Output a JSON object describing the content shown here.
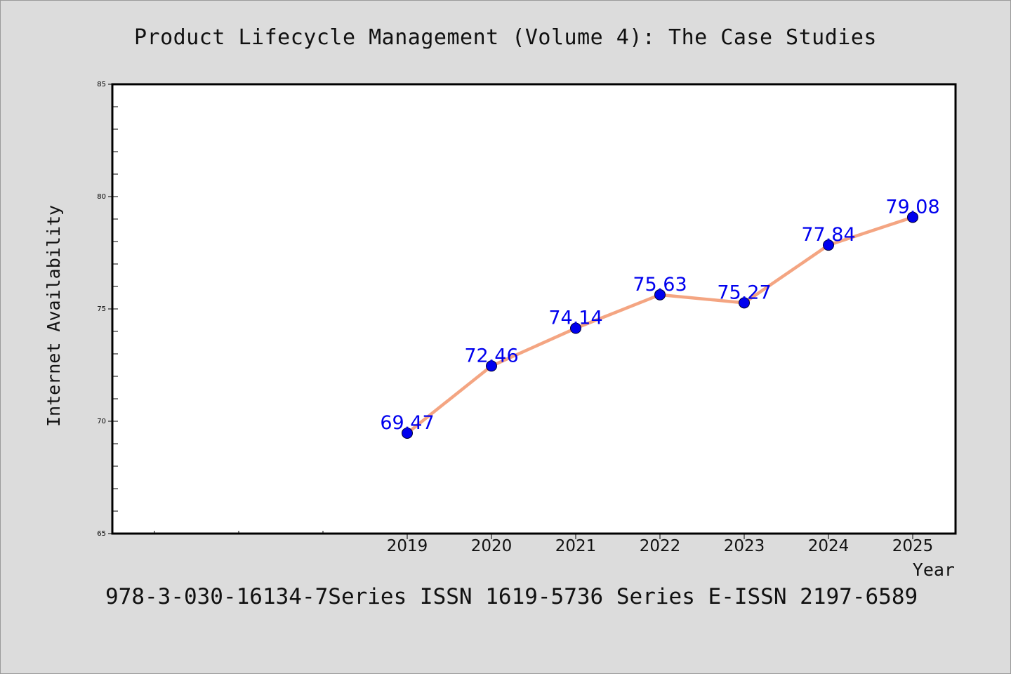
{
  "chart_data": {
    "type": "line",
    "title": "Product Lifecycle Management (Volume 4): The Case Studies",
    "xlabel": "Year",
    "ylabel": "Internet Availability",
    "x": [
      "2019",
      "2020",
      "2021",
      "2022",
      "2023",
      "2024",
      "2025"
    ],
    "series": [
      {
        "values": [
          69.47,
          72.46,
          74.14,
          75.63,
          75.27,
          77.84,
          79.08
        ]
      }
    ],
    "data_labels": [
      "69.47",
      "72.46",
      "74.14",
      "75.63",
      "75.27",
      "77.84",
      "79.08"
    ],
    "yticks": [
      "65",
      "70",
      "75",
      "80",
      "85"
    ],
    "ylim": [
      65,
      85
    ],
    "grid": false,
    "colors": {
      "line": "#f4a582",
      "marker": "#0000ee",
      "data_label": "#0000ee",
      "plot_background": "#ffffff",
      "page_background": "#dcdcdc"
    }
  },
  "footer": {
    "text": "978-3-030-16134-7Series ISSN 1619-5736 Series E-ISSN 2197-6589"
  }
}
